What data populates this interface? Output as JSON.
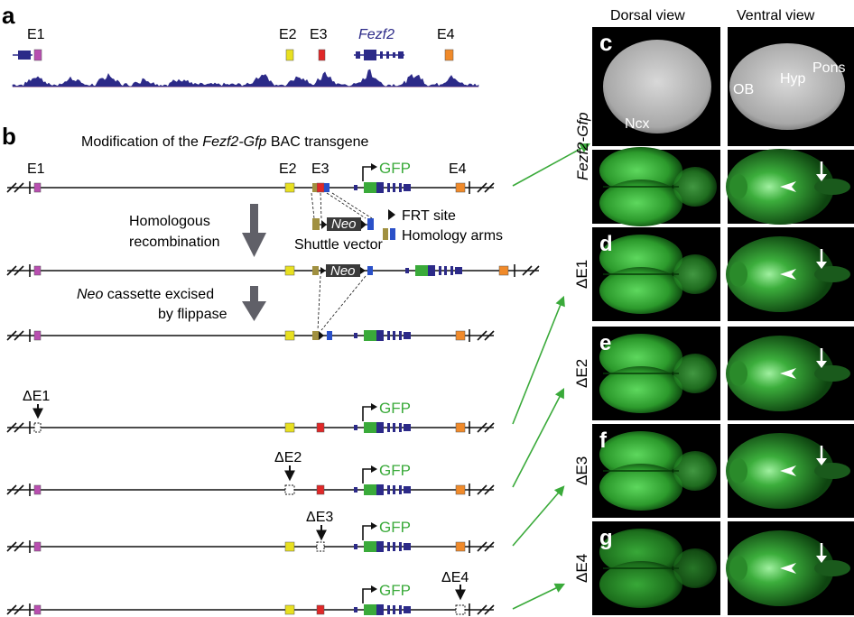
{
  "panel_a": {
    "letter": "a",
    "elements": [
      "E1",
      "E2",
      "E3",
      "E4"
    ],
    "gene_name": "Fezf2"
  },
  "panel_b": {
    "letter": "b",
    "title_pre": "Modification of the ",
    "title_gene": "Fezf2-Gfp",
    "title_post": " BAC transgene",
    "elements": [
      "E1",
      "E2",
      "E3",
      "E4"
    ],
    "gfp": "GFP",
    "neo": "Neo",
    "step1_line1": "Homologous",
    "step1_line2": "recombination",
    "step2_line1_italic": "Neo",
    "step2_line1_rest": " cassette excised",
    "step2_line2": "by flippase",
    "shuttle_vector": "Shuttle vector",
    "legend_frt": "FRT site",
    "legend_arms": "Homology arms",
    "deletions": [
      "ΔE1",
      "ΔE2",
      "ΔE3",
      "ΔE4"
    ]
  },
  "panel_right": {
    "col_dorsal": "Dorsal view",
    "col_ventral": "Ventral view",
    "row_c_label": "Fezf2-Gfp",
    "c_letter": "c",
    "c_labels": {
      "ncx": "Ncx",
      "ob": "OB",
      "hyp": "Hyp",
      "pons": "Pons"
    },
    "rows": [
      {
        "letter": "d",
        "label": "ΔE1"
      },
      {
        "letter": "e",
        "label": "ΔE2"
      },
      {
        "letter": "f",
        "label": "ΔE3"
      },
      {
        "letter": "g",
        "label": "ΔE4"
      }
    ]
  },
  "colors": {
    "e1": "#b84fb0",
    "e2": "#e8e020",
    "e3": "#e02828",
    "e4": "#f08a2a",
    "exon": "#2c2a88",
    "gfp": "#3aaa3a",
    "arm_gold": "#a09040",
    "arm_blue": "#2a50c8",
    "arrow_green": "#3aaa3a"
  }
}
